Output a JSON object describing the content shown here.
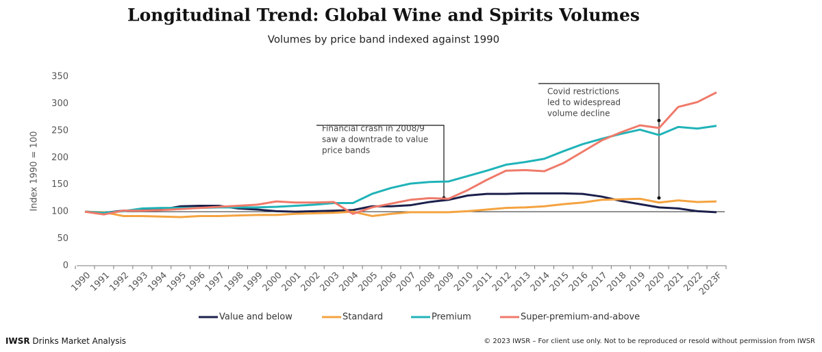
{
  "chart_data": {
    "type": "line",
    "title": "Longitudinal Trend: Global Wine and Spirits Volumes",
    "subtitle": "Volumes by price band indexed against 1990",
    "y_label": "Index 1990 = 100",
    "categories": [
      "1990",
      "1991",
      "1992",
      "1993",
      "1994",
      "1995",
      "1996",
      "1997",
      "1998",
      "1999",
      "2000",
      "2001",
      "2002",
      "2003",
      "2004",
      "2005",
      "2006",
      "2007",
      "2008",
      "2009",
      "2010",
      "2011",
      "2012",
      "2013",
      "2014",
      "2015",
      "2016",
      "2017",
      "2018",
      "2019",
      "2020",
      "2021",
      "2022",
      "2023F"
    ],
    "series": [
      {
        "name": "Value and below",
        "color": "#1b1f4b",
        "values": [
          100,
          98,
          102,
          103,
          104,
          110,
          111,
          111,
          106,
          104,
          101,
          100,
          101,
          102,
          103,
          110,
          110,
          112,
          118,
          122,
          130,
          133,
          133,
          134,
          134,
          134,
          133,
          128,
          120,
          114,
          108,
          106,
          101,
          99
        ]
      },
      {
        "name": "Standard",
        "color": "#f4a340",
        "values": [
          100,
          99,
          92,
          92,
          91,
          90,
          92,
          92,
          93,
          94,
          94,
          96,
          97,
          98,
          100,
          92,
          96,
          99,
          99,
          99,
          101,
          104,
          107,
          108,
          110,
          114,
          117,
          122,
          123,
          124,
          117,
          121,
          118,
          119
        ]
      },
      {
        "name": "Premium",
        "color": "#1fb3b8",
        "values": [
          100,
          98,
          101,
          106,
          107,
          107,
          107,
          108,
          108,
          108,
          109,
          111,
          113,
          116,
          116,
          133,
          144,
          152,
          155,
          156,
          166,
          176,
          187,
          192,
          198,
          212,
          225,
          235,
          244,
          252,
          242,
          257,
          254,
          259
        ]
      },
      {
        "name": "Super-premium-and-above",
        "color": "#ef7a6a",
        "values": [
          100,
          95,
          102,
          102,
          103,
          105,
          107,
          109,
          111,
          113,
          119,
          117,
          117,
          118,
          96,
          108,
          115,
          122,
          125,
          124,
          140,
          159,
          176,
          177,
          175,
          190,
          211,
          232,
          247,
          260,
          255,
          294,
          303,
          321
        ]
      }
    ],
    "ylim": [
      0,
      350
    ],
    "yticks": [
      0,
      50,
      100,
      150,
      200,
      250,
      300,
      350
    ],
    "reference_line": 100,
    "grid": false,
    "annotations": [
      {
        "lines": [
          "Financial crash in 2008/9",
          "saw a downtrade to value",
          "price bands"
        ]
      },
      {
        "lines": [
          "Covid restrictions",
          "led to widespread",
          "volume decline"
        ]
      }
    ]
  },
  "footer": {
    "brand": "IWSR",
    "tagline": "Drinks Market Analysis",
    "copyright": "© 2023 IWSR – For client use only. Not to be reproduced or resold without permission from IWSR"
  }
}
